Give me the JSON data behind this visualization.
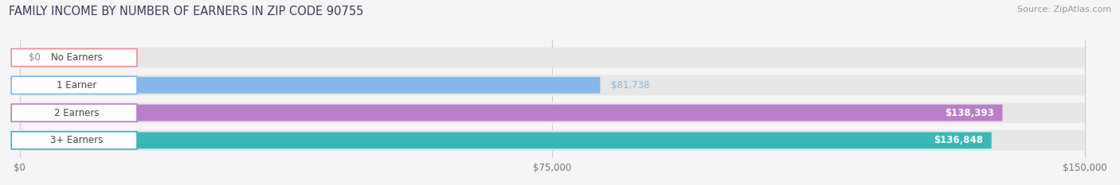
{
  "title": "FAMILY INCOME BY NUMBER OF EARNERS IN ZIP CODE 90755",
  "source": "Source: ZipAtlas.com",
  "categories": [
    "No Earners",
    "1 Earner",
    "2 Earners",
    "3+ Earners"
  ],
  "values": [
    0,
    81738,
    138393,
    136848
  ],
  "bar_colors": [
    "#e8909a",
    "#85b8e8",
    "#b87ec8",
    "#38b8b8"
  ],
  "value_labels": [
    "$0",
    "$81,738",
    "$138,393",
    "$136,848"
  ],
  "value_label_inside": [
    false,
    false,
    true,
    true
  ],
  "value_label_colors_outside": [
    "#777777",
    "#85b8e8",
    "#ffffff",
    "#ffffff"
  ],
  "xlim_max": 150000,
  "xticks": [
    0,
    75000,
    150000
  ],
  "xtick_labels": [
    "$0",
    "$75,000",
    "$150,000"
  ],
  "figsize": [
    14.06,
    2.33
  ],
  "dpi": 100,
  "bg_color": "#f5f5f5",
  "title_fontsize": 10.5,
  "source_fontsize": 8,
  "bar_label_fontsize": 8.5,
  "value_label_fontsize": 8.5,
  "tick_fontsize": 8.5
}
